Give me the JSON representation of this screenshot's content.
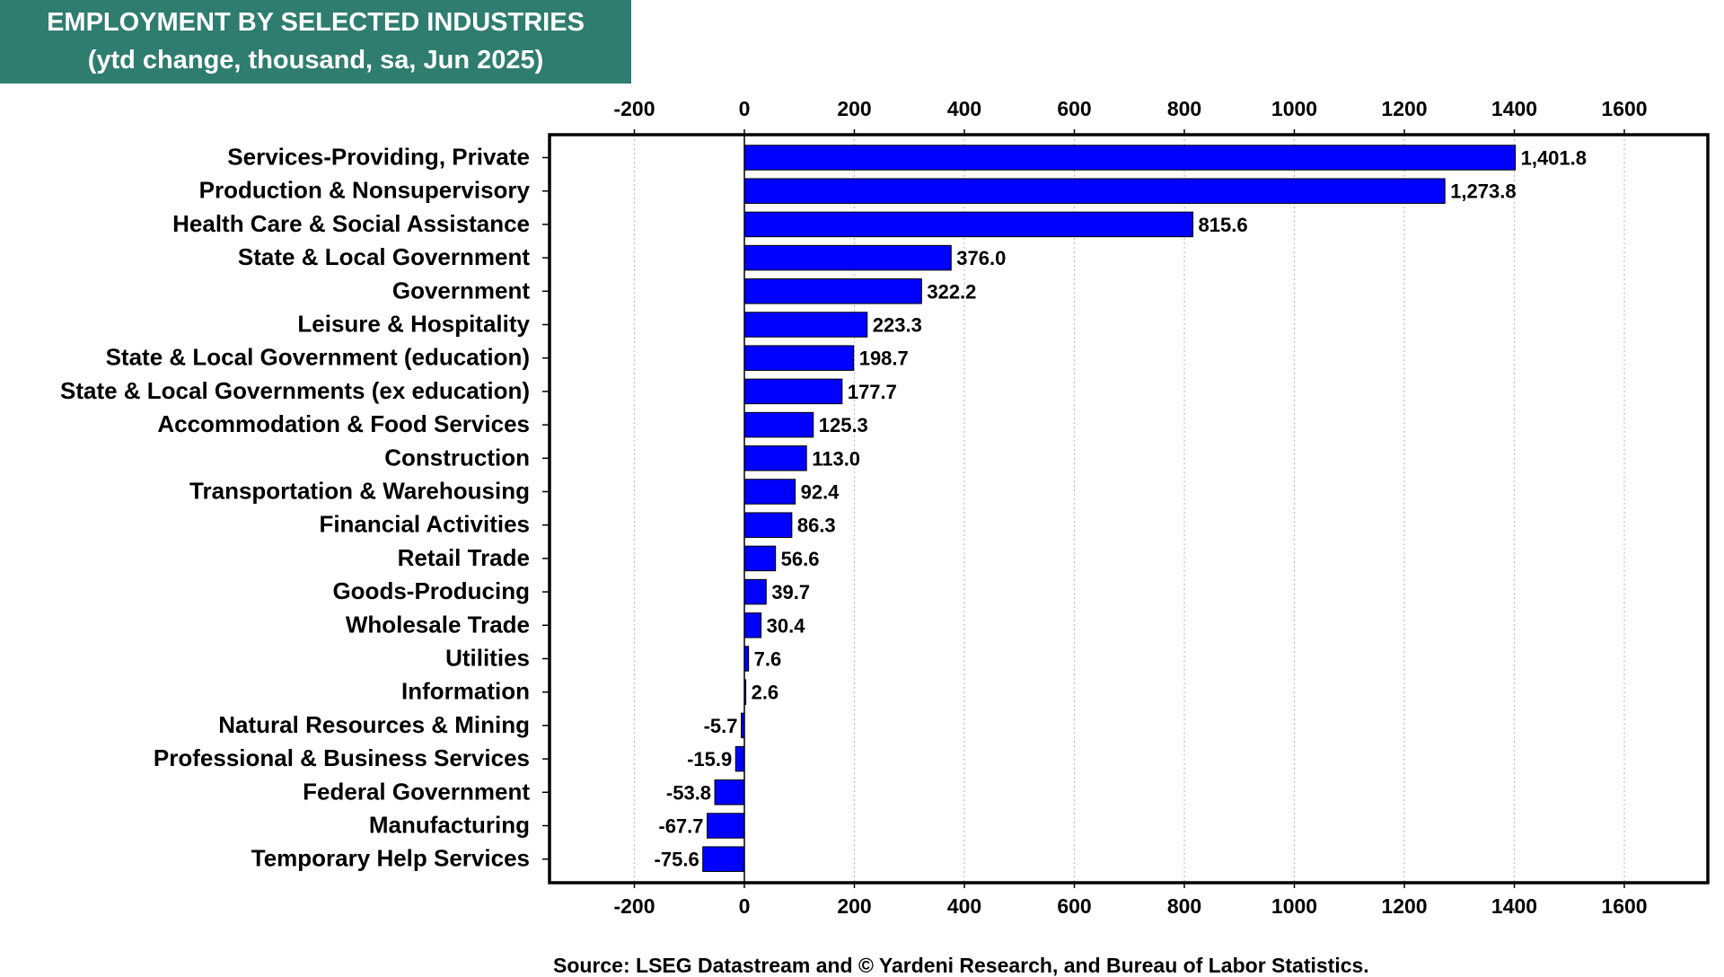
{
  "header": {
    "title": "EMPLOYMENT BY SELECTED INDUSTRIES",
    "subtitle": "(ytd change, thousand, sa, Jun 2025)"
  },
  "source": "Source: LSEG Datastream and © Yardeni Research, and Bureau of Labor Statistics.",
  "colors": {
    "bar": "#0000ff",
    "title_bg": "#2e7d6f",
    "title_text": "#ffffff"
  },
  "chart_data": {
    "type": "bar",
    "orientation": "horizontal",
    "title": "EMPLOYMENT BY SELECTED INDUSTRIES",
    "subtitle": "(ytd change, thousand, sa, Jun 2025)",
    "categories": [
      "Services-Providing, Private",
      "Production & Nonsupervisory",
      "Health Care & Social Assistance",
      "State & Local Government",
      "Government",
      "Leisure & Hospitality",
      "State & Local Government (education)",
      "State & Local Governments (ex education)",
      "Accommodation & Food Services",
      "Construction",
      "Transportation & Warehousing",
      "Financial Activities",
      "Retail Trade",
      "Goods-Producing",
      "Wholesale Trade",
      "Utilities",
      "Information",
      "Natural Resources & Mining",
      "Professional & Business Services",
      "Federal Government",
      "Manufacturing",
      "Temporary Help Services"
    ],
    "values": [
      1401.8,
      1273.8,
      815.6,
      376.0,
      322.2,
      223.3,
      198.7,
      177.7,
      125.3,
      113.0,
      92.4,
      86.3,
      56.6,
      39.7,
      30.4,
      7.6,
      2.6,
      -5.7,
      -15.9,
      -53.8,
      -67.7,
      -75.6
    ],
    "value_labels": [
      "1,401.8",
      "1,273.8",
      "815.6",
      "376.0",
      "322.2",
      "223.3",
      "198.7",
      "177.7",
      "125.3",
      "113.0",
      "92.4",
      "86.3",
      "56.6",
      "39.7",
      "30.4",
      "7.6",
      "2.6",
      "-5.7",
      "-15.9",
      "-53.8",
      "-67.7",
      "-75.6"
    ],
    "xlim": [
      -355,
      1750
    ],
    "xticks": [
      -200,
      0,
      200,
      400,
      600,
      800,
      1000,
      1200,
      1400,
      1600
    ],
    "xtick_labels": [
      "-200",
      "0",
      "200",
      "400",
      "600",
      "800",
      "1000",
      "1200",
      "1400",
      "1600"
    ],
    "grid": "vertical-dotted",
    "axis_ticks_top_and_bottom": true,
    "xlabel": "",
    "ylabel": ""
  }
}
